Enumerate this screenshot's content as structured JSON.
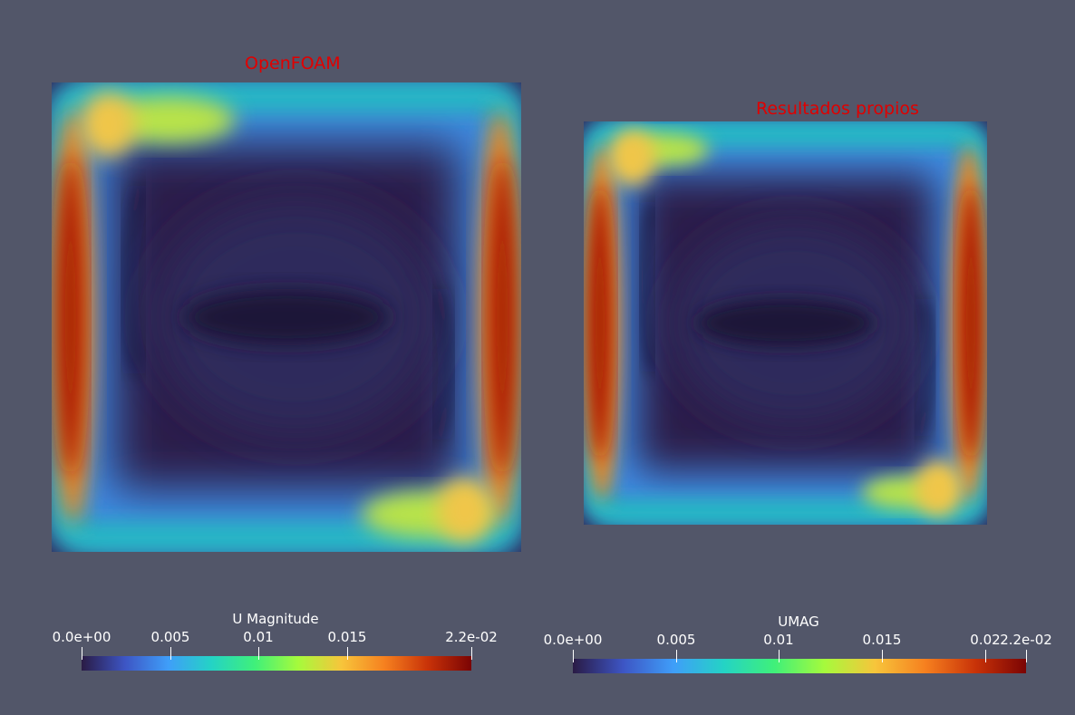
{
  "views": [
    {
      "title": "OpenFOAM",
      "colorbar": {
        "title": "U Magnitude",
        "ticks": [
          "0.0e+00",
          "0.005",
          "0.01",
          "0.015",
          "2.2e-02"
        ],
        "tick_values": [
          0,
          0.005,
          0.01,
          0.015,
          0.022
        ]
      }
    },
    {
      "title": "Resultados propios",
      "colorbar": {
        "title": "UMAG",
        "ticks": [
          "0.0e+00",
          "0.005",
          "0.01",
          "0.015",
          "0.02",
          "2.2e-02"
        ],
        "tick_values": [
          0,
          0.005,
          0.01,
          0.015,
          0.02,
          0.022
        ]
      }
    }
  ],
  "colormap": [
    "#2a1b45",
    "#3d55c4",
    "#3f9ef9",
    "#24d3c5",
    "#3ff07a",
    "#a6fa3c",
    "#f7c53b",
    "#f6801f",
    "#c83208",
    "#7b0404"
  ],
  "background": "#525669"
}
